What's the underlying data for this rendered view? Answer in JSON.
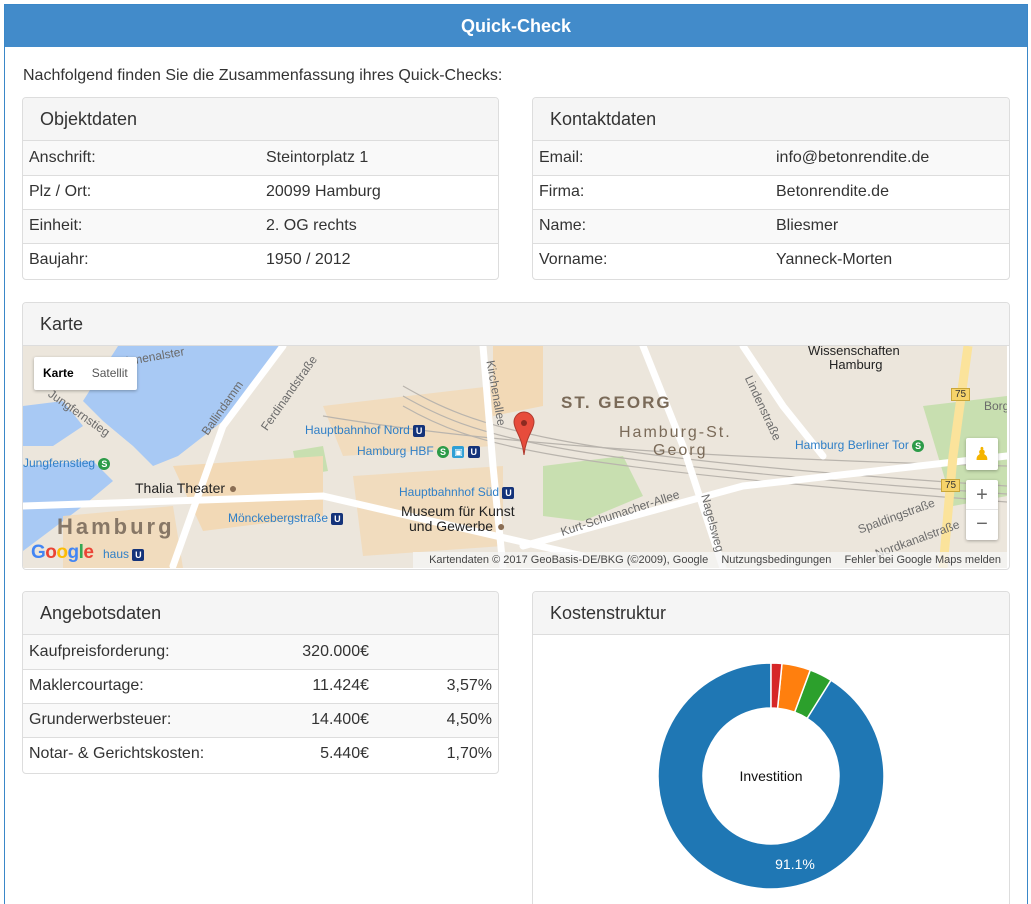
{
  "window": {
    "title": "Quick-Check"
  },
  "intro": "Nachfolgend finden Sie die Zusammenfassung ihres Quick-Checks:",
  "objektdaten": {
    "title": "Objektdaten",
    "rows": [
      {
        "label": "Anschrift:",
        "value": "Steintorplatz 1"
      },
      {
        "label": "Plz / Ort:",
        "value": "20099 Hamburg"
      },
      {
        "label": "Einheit:",
        "value": "2. OG rechts"
      },
      {
        "label": "Baujahr:",
        "value": "1950 / 2012"
      }
    ]
  },
  "kontaktdaten": {
    "title": "Kontaktdaten",
    "rows": [
      {
        "label": "Email:",
        "value": "info@betonrendite.de"
      },
      {
        "label": "Firma:",
        "value": "Betonrendite.de"
      },
      {
        "label": "Name:",
        "value": "Bliesmer"
      },
      {
        "label": "Vorname:",
        "value": "Yanneck-Morten"
      }
    ]
  },
  "karte": {
    "title": "Karte",
    "map_types": [
      "Karte",
      "Satellit"
    ],
    "attribution": [
      "Kartendaten © 2017 GeoBasis-DE/BKG (©2009), Google",
      "Nutzungsbedingungen",
      "Fehler bei Google Maps melden"
    ],
    "labels": {
      "binnenalster": "Binnenalster",
      "jungfernstieg_street": "Jungfernstieg",
      "jungfernstieg_station": "Jungfernstieg",
      "ballindamm": "Ballindamm",
      "ferdinandstrasse": "Ferdinandstraße",
      "kirchenallee": "Kirchenallee",
      "st_georg": "ST. GEORG",
      "hamburg_st_georg_1": "Hamburg-St.",
      "hamburg_st_georg_2": "Georg",
      "wissenschaften_1": "Wissenschaften",
      "wissenschaften_2": "Hamburg",
      "lindenstrasse": "Lindenstraße",
      "hbf_nord": "Hauptbahnhof Nord",
      "hamburg_hbf": "Hamburg HBF",
      "hamburg_berliner_tor": "Hamburg Berliner Tor",
      "thalia_theater": "Thalia Theater",
      "hbf_sued": "Hauptbahnhof Süd",
      "museum_1": "Museum für Kunst",
      "museum_2": "und Gewerbe",
      "kurt_schumacher": "Kurt-Schumacher-Allee",
      "nagelsweg": "Nagelsweg",
      "spaldingstrasse": "Spaldingstraße",
      "nordkanalstrasse": "Nordkanalstraße",
      "moenckebergstrasse": "Mönckebergstraße",
      "city": "Hamburg",
      "haus": "haus",
      "borg": "Borg",
      "road_75": "75"
    },
    "google_logo": "Google"
  },
  "angebotsdaten": {
    "title": "Angebotsdaten",
    "rows": [
      {
        "label": "Kaufpreisforderung:",
        "amount": "320.000€",
        "percent": ""
      },
      {
        "label": "Maklercourtage:",
        "amount": "11.424€",
        "percent": "3,57%"
      },
      {
        "label": "Grunderwerbsteuer:",
        "amount": "14.400€",
        "percent": "4,50%"
      },
      {
        "label": "Notar- & Gerichtskosten:",
        "amount": "5.440€",
        "percent": "1,70%"
      }
    ]
  },
  "kostenstruktur": {
    "title": "Kostenstruktur",
    "center_label": "Investition",
    "slice_label": "91.1%"
  },
  "chart_data": {
    "type": "pie",
    "categories": [
      "Kaufpreisforderung",
      "Maklercourtage",
      "Grunderwerbsteuer",
      "Notar- & Gerichtskosten"
    ],
    "values": [
      320000,
      11424,
      14400,
      5440
    ],
    "colors": [
      "#1f77b4",
      "#2ca02c",
      "#ff7f0e",
      "#d62728"
    ],
    "title": "",
    "data_labels": [
      "91.1%"
    ]
  }
}
